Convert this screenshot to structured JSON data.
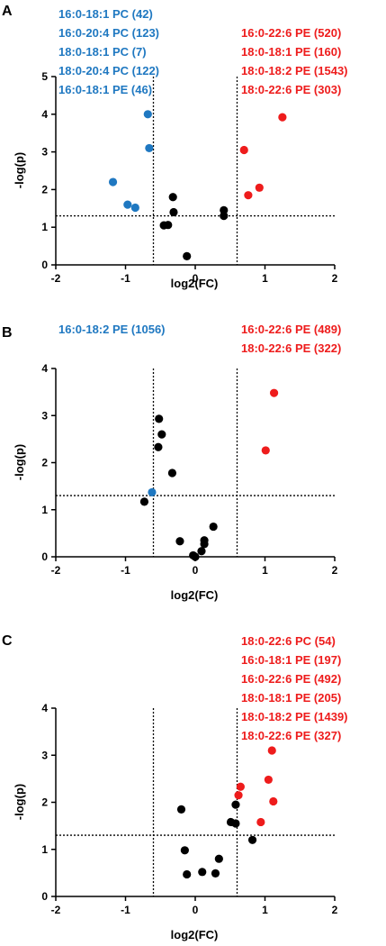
{
  "colors": {
    "up": "#ee1c1c",
    "down": "#1f78c1",
    "ns": "#000000"
  },
  "chart_data": [
    {
      "type": "scatter",
      "panel": "A",
      "xlabel": "log2(FC)",
      "ylabel": "-log(p)",
      "xlim": [
        -2,
        2
      ],
      "ylim": [
        0,
        5
      ],
      "xticks": [
        -2,
        -1,
        0,
        1,
        2
      ],
      "yticks": [
        0,
        1,
        2,
        3,
        4,
        5
      ],
      "fc_thresholds": [
        -0.6,
        0.6
      ],
      "p_threshold": 1.3,
      "down_labels": [
        "16:0-18:1 PC (42)",
        "16:0-20:4 PC (123)",
        "18:0-18:1 PC (7)",
        "18:0-20:4 PC (122)",
        "16:0-18:1 PE (46)"
      ],
      "up_labels": [
        "16:0-22:6 PE (520)",
        "18:0-18:1 PE (160)",
        "18:0-18:2 PE (1543)",
        "18:0-22:6 PE (303)"
      ],
      "points": [
        {
          "x": -0.68,
          "y": 4.0,
          "group": "down"
        },
        {
          "x": -0.66,
          "y": 3.1,
          "group": "down"
        },
        {
          "x": -1.18,
          "y": 2.2,
          "group": "down"
        },
        {
          "x": -0.97,
          "y": 1.6,
          "group": "down"
        },
        {
          "x": -0.86,
          "y": 1.52,
          "group": "down"
        },
        {
          "x": 1.25,
          "y": 3.92,
          "group": "up"
        },
        {
          "x": 0.7,
          "y": 3.05,
          "group": "up"
        },
        {
          "x": 0.92,
          "y": 2.05,
          "group": "up"
        },
        {
          "x": 0.76,
          "y": 1.85,
          "group": "up"
        },
        {
          "x": -0.32,
          "y": 1.8,
          "group": "ns"
        },
        {
          "x": -0.31,
          "y": 1.4,
          "group": "ns"
        },
        {
          "x": -0.45,
          "y": 1.05,
          "group": "ns"
        },
        {
          "x": -0.39,
          "y": 1.06,
          "group": "ns"
        },
        {
          "x": -0.12,
          "y": 0.23,
          "group": "ns"
        },
        {
          "x": 0.41,
          "y": 1.45,
          "group": "ns"
        },
        {
          "x": 0.41,
          "y": 1.3,
          "group": "ns"
        }
      ]
    },
    {
      "type": "scatter",
      "panel": "B",
      "xlabel": "log2(FC)",
      "ylabel": "-log(p)",
      "xlim": [
        -2,
        2
      ],
      "ylim": [
        0,
        4
      ],
      "xticks": [
        -2,
        -1,
        0,
        1,
        2
      ],
      "yticks": [
        0,
        1,
        2,
        3,
        4
      ],
      "fc_thresholds": [
        -0.6,
        0.6
      ],
      "p_threshold": 1.3,
      "down_labels": [
        "16:0-18:2 PE (1056)"
      ],
      "up_labels": [
        "16:0-22:6 PE (489)",
        "18:0-22:6 PE (322)"
      ],
      "points": [
        {
          "x": -0.62,
          "y": 1.37,
          "group": "down"
        },
        {
          "x": 1.13,
          "y": 3.48,
          "group": "up"
        },
        {
          "x": 1.01,
          "y": 2.26,
          "group": "up"
        },
        {
          "x": -0.52,
          "y": 2.93,
          "group": "ns"
        },
        {
          "x": -0.48,
          "y": 2.6,
          "group": "ns"
        },
        {
          "x": -0.53,
          "y": 2.33,
          "group": "ns"
        },
        {
          "x": -0.33,
          "y": 1.78,
          "group": "ns"
        },
        {
          "x": -0.73,
          "y": 1.17,
          "group": "ns"
        },
        {
          "x": -0.22,
          "y": 0.33,
          "group": "ns"
        },
        {
          "x": 0.13,
          "y": 0.35,
          "group": "ns"
        },
        {
          "x": 0.13,
          "y": 0.27,
          "group": "ns"
        },
        {
          "x": 0.26,
          "y": 0.64,
          "group": "ns"
        },
        {
          "x": 0.09,
          "y": 0.12,
          "group": "ns"
        },
        {
          "x": -0.03,
          "y": 0.03,
          "group": "ns"
        },
        {
          "x": 0.0,
          "y": 0.0,
          "group": "ns"
        }
      ]
    },
    {
      "type": "scatter",
      "panel": "C",
      "xlabel": "log2(FC)",
      "ylabel": "-log(p)",
      "xlim": [
        -2,
        2
      ],
      "ylim": [
        0,
        4
      ],
      "xticks": [
        -2,
        -1,
        0,
        1,
        2
      ],
      "yticks": [
        0,
        1,
        2,
        3,
        4
      ],
      "fc_thresholds": [
        -0.6,
        0.6
      ],
      "p_threshold": 1.3,
      "down_labels": [],
      "up_labels": [
        "18:0-22:6 PC (54)",
        "16:0-18:1 PE (197)",
        "16:0-22:6 PE (492)",
        "18:0-18:1 PE (205)",
        "18:0-18:2 PE (1439)",
        "18:0-22:6 PE (327)"
      ],
      "points": [
        {
          "x": 1.1,
          "y": 3.1,
          "group": "up"
        },
        {
          "x": 1.05,
          "y": 2.48,
          "group": "up"
        },
        {
          "x": 0.65,
          "y": 2.33,
          "group": "up"
        },
        {
          "x": 0.62,
          "y": 2.15,
          "group": "up"
        },
        {
          "x": 1.12,
          "y": 2.02,
          "group": "up"
        },
        {
          "x": 0.94,
          "y": 1.58,
          "group": "up"
        },
        {
          "x": -0.2,
          "y": 1.85,
          "group": "ns"
        },
        {
          "x": 0.58,
          "y": 1.95,
          "group": "ns"
        },
        {
          "x": 0.51,
          "y": 1.58,
          "group": "ns"
        },
        {
          "x": 0.58,
          "y": 1.55,
          "group": "ns"
        },
        {
          "x": 0.82,
          "y": 1.2,
          "group": "ns"
        },
        {
          "x": -0.15,
          "y": 0.98,
          "group": "ns"
        },
        {
          "x": 0.34,
          "y": 0.8,
          "group": "ns"
        },
        {
          "x": -0.12,
          "y": 0.47,
          "group": "ns"
        },
        {
          "x": 0.1,
          "y": 0.52,
          "group": "ns"
        },
        {
          "x": 0.29,
          "y": 0.49,
          "group": "ns"
        }
      ]
    }
  ]
}
